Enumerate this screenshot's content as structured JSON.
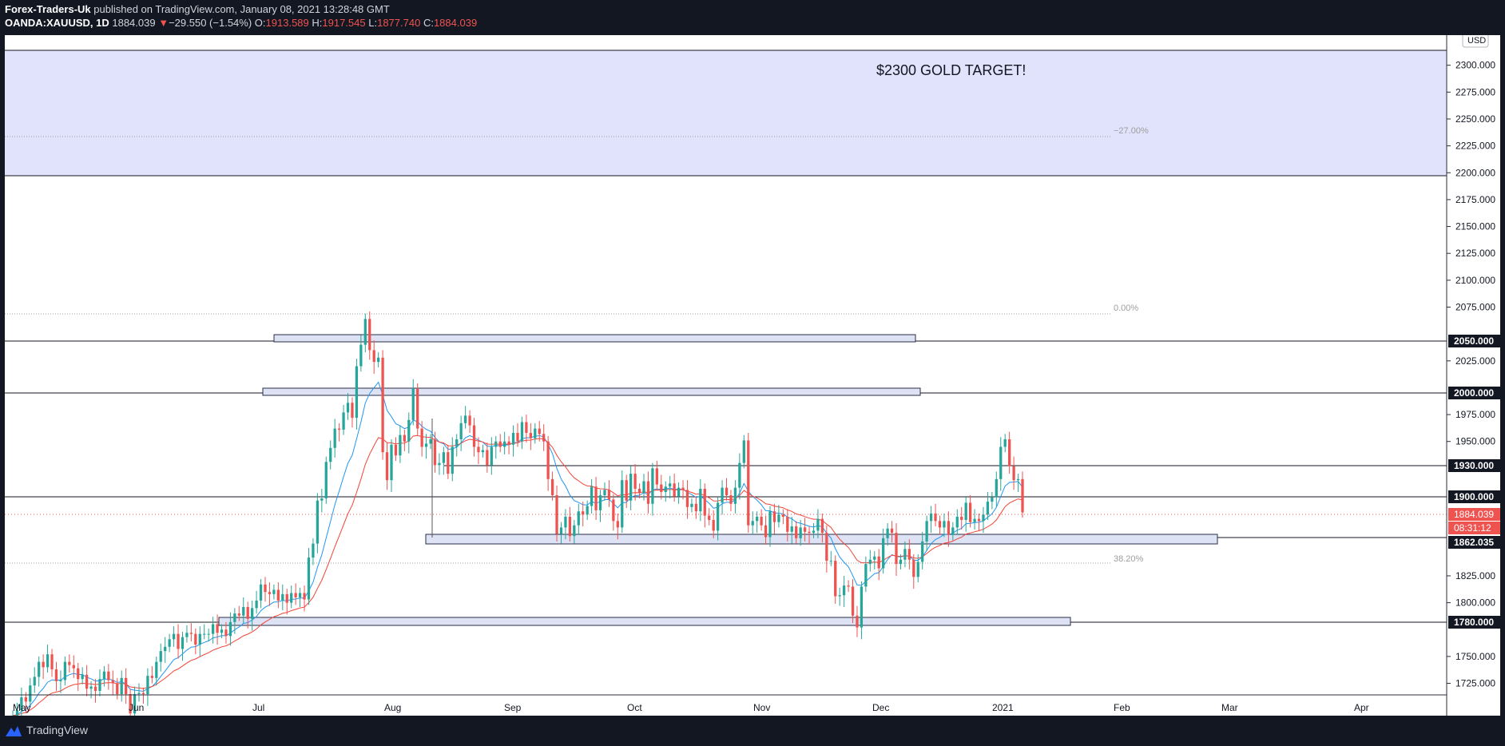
{
  "header": {
    "publisher": "Forex-Traders-Uk",
    "published_text": "published on TradingView.com, January 08, 2021 13:28:48 GMT",
    "symbol": "OANDA:XAUUSD, 1D",
    "last": "1884.039",
    "change_arrow": "▼",
    "change": "−29.550 (−1.54%)",
    "o_label": "O:",
    "o_value": "1913.589",
    "h_label": "H:",
    "h_value": "1917.545",
    "l_label": "L:",
    "l_value": "1877.740",
    "c_label": "C:",
    "c_value": "1884.039"
  },
  "currency_badge": "USD",
  "annotation_text": "$2300 GOLD TARGET!",
  "fib_labels": [
    "−27.00%",
    "0.00%",
    "38.20%"
  ],
  "price_ticks": [
    "2300.000",
    "2275.000",
    "2250.000",
    "2225.000",
    "2200.000",
    "2175.000",
    "2150.000",
    "2125.000",
    "2100.000",
    "2075.000",
    "2025.000",
    "1975.000",
    "1950.000",
    "1825.000",
    "1800.000",
    "1750.000",
    "1725.000"
  ],
  "level_labels": [
    "2050.000",
    "2000.000",
    "1930.000",
    "1900.000",
    "1862.035",
    "1780.000"
  ],
  "current_price_label": "1884.039",
  "countdown_label": "08:31:12",
  "time_ticks": [
    "May",
    "Jun",
    "Jul",
    "Aug",
    "Sep",
    "Oct",
    "Nov",
    "Dec",
    "2021",
    "Feb",
    "Mar",
    "Apr"
  ],
  "footer": {
    "brand": "TradingView"
  },
  "colors": {
    "bull": "#26a69a",
    "bear": "#ef5350",
    "ema_fast": "#2196f3",
    "ema_slow": "#f44336",
    "zone_fill": "#e1e2fb",
    "box_fill": "#dde3f5",
    "box_stroke": "#2a2e45",
    "header_bg": "#131722"
  },
  "chart_data": {
    "type": "candlestick",
    "symbol": "OANDA:XAUUSD",
    "interval": "1D",
    "y_range": [
      1715,
      2328
    ],
    "ema_periods": [
      10,
      21
    ],
    "daily_closes": [
      1695,
      1700,
      1712,
      1708,
      1723,
      1731,
      1745,
      1740,
      1752,
      1738,
      1727,
      1728,
      1745,
      1742,
      1739,
      1729,
      1733,
      1720,
      1722,
      1718,
      1729,
      1736,
      1728,
      1725,
      1715,
      1730,
      1715,
      1697,
      1715,
      1716,
      1715,
      1732,
      1730,
      1745,
      1755,
      1759,
      1766,
      1771,
      1757,
      1768,
      1772,
      1771,
      1761,
      1771,
      1771,
      1771,
      1780,
      1772,
      1775,
      1769,
      1782,
      1790,
      1788,
      1796,
      1785,
      1795,
      1802,
      1817,
      1810,
      1808,
      1812,
      1802,
      1808,
      1800,
      1809,
      1805,
      1809,
      1803,
      1842,
      1855,
      1895,
      1897,
      1931,
      1944,
      1962,
      1961,
      1977,
      1986,
      1972,
      2020,
      2040,
      2064,
      2035,
      2024,
      2028,
      1940,
      1914,
      1947,
      1937,
      1956,
      1950,
      1970,
      1999,
      1962,
      1945,
      1948,
      1952,
      1928,
      1930,
      1940,
      1920,
      1945,
      1952,
      1967,
      1974,
      1965,
      1945,
      1940,
      1942,
      1928,
      1945,
      1950,
      1945,
      1950,
      1947,
      1958,
      1950,
      1968,
      1958,
      1953,
      1962,
      1957,
      1950,
      1915,
      1900,
      1864,
      1870,
      1880,
      1862,
      1872,
      1885,
      1882,
      1890,
      1908,
      1886,
      1900,
      1905,
      1896,
      1876,
      1870,
      1914,
      1895,
      1920,
      1906,
      1902,
      1913,
      1892,
      1925,
      1910,
      1903,
      1908,
      1911,
      1899,
      1907,
      1905,
      1889,
      1892,
      1885,
      1906,
      1881,
      1877,
      1867,
      1893,
      1907,
      1900,
      1892,
      1907,
      1930,
      1951,
      1872,
      1876,
      1880,
      1872,
      1861,
      1885,
      1875,
      1882,
      1880,
      1866,
      1871,
      1860,
      1870,
      1866,
      1865,
      1867,
      1878,
      1865,
      1839,
      1839,
      1806,
      1807,
      1816,
      1815,
      1788,
      1777,
      1815,
      1836,
      1840,
      1843,
      1832,
      1860,
      1869,
      1865,
      1836,
      1840,
      1850,
      1840,
      1824,
      1838,
      1857,
      1876,
      1883,
      1876,
      1870,
      1876,
      1863,
      1870,
      1880,
      1877,
      1893,
      1875,
      1878,
      1876,
      1882,
      1894,
      1898,
      1915,
      1945,
      1952,
      1927,
      1914,
      1915,
      1884
    ]
  }
}
